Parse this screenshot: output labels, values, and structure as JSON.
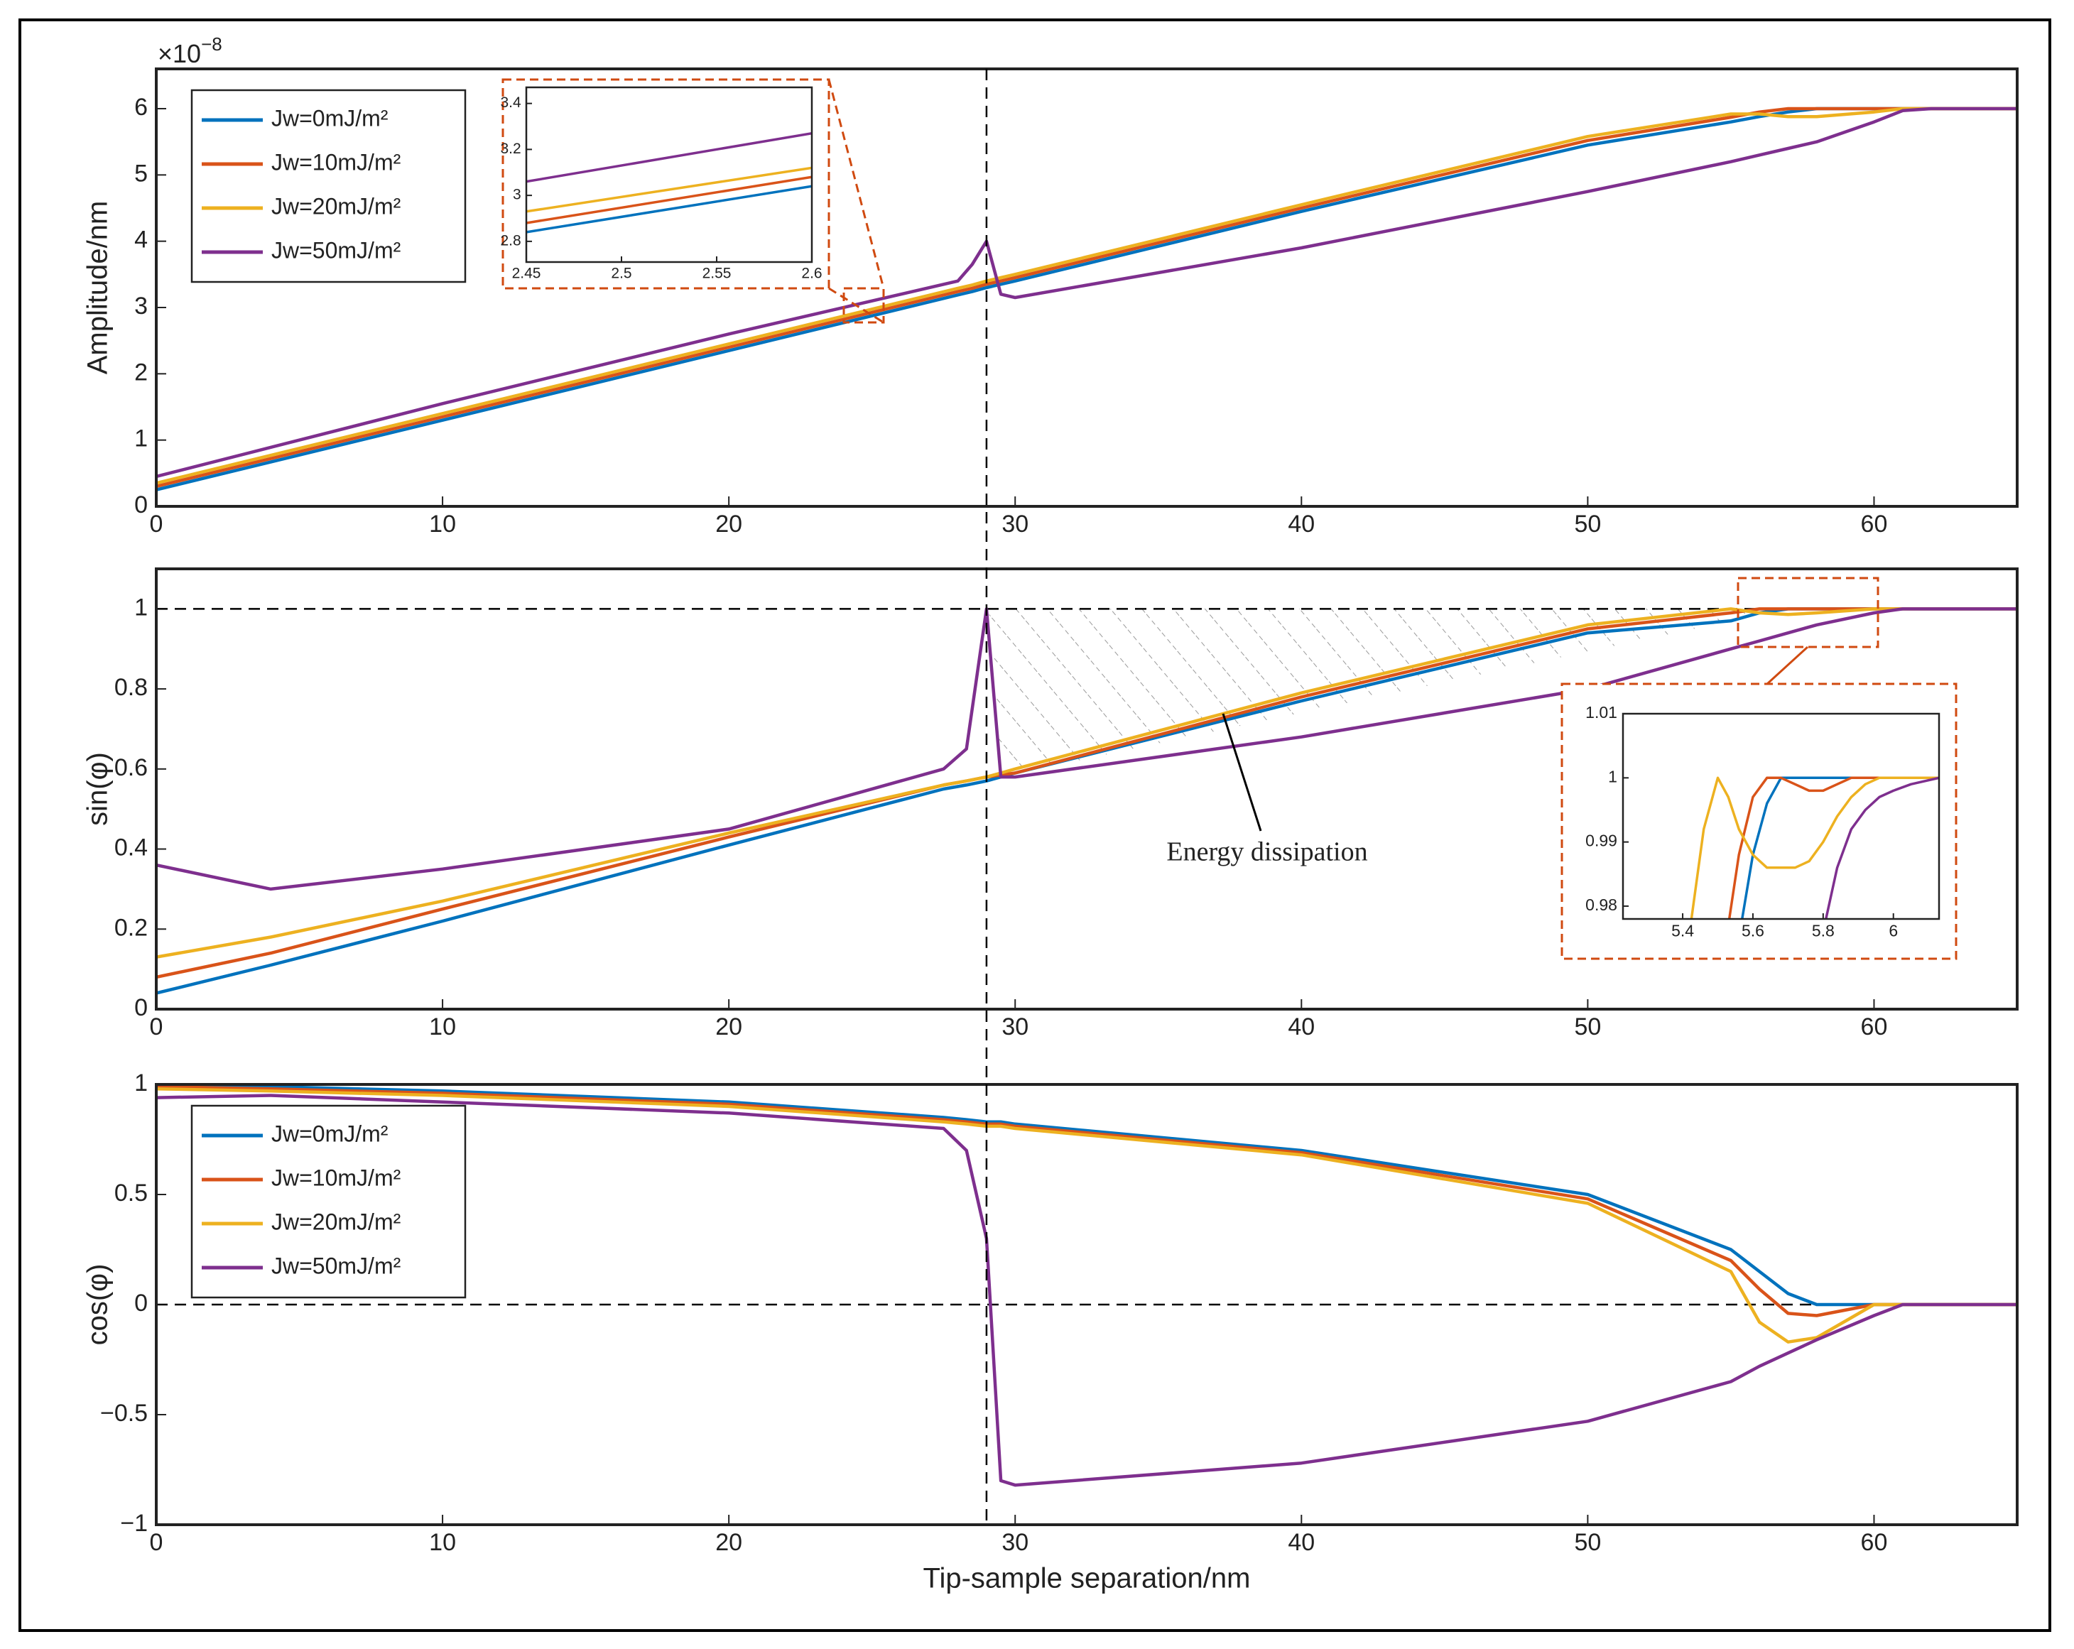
{
  "chart_data": [
    {
      "type": "line",
      "ylabel": "Amplitude/nm",
      "y_multiplier": {
        "base": "×10",
        "exponent": "−8"
      },
      "x": [
        0,
        10,
        20,
        28,
        28.5,
        29,
        29.5,
        30,
        40,
        50,
        55,
        56,
        57,
        58,
        60,
        61,
        62,
        65
      ],
      "series": [
        {
          "name": "Jw=0mJ/m²",
          "color": "#0072BD",
          "values": [
            0.25,
            1.3,
            2.35,
            3.19,
            3.24,
            3.3,
            3.35,
            3.4,
            4.45,
            5.45,
            5.8,
            5.88,
            5.95,
            6,
            6,
            6,
            6,
            6
          ]
        },
        {
          "name": "Jw=10mJ/m²",
          "color": "#D95319",
          "values": [
            0.3,
            1.35,
            2.4,
            3.24,
            3.29,
            3.35,
            3.4,
            3.45,
            4.5,
            5.52,
            5.87,
            5.95,
            6,
            6,
            6,
            6,
            6,
            6
          ]
        },
        {
          "name": "Jw=20mJ/m²",
          "color": "#EDB120",
          "values": [
            0.35,
            1.4,
            2.45,
            3.29,
            3.34,
            3.4,
            3.45,
            3.5,
            4.55,
            5.58,
            5.92,
            5.92,
            5.88,
            5.88,
            5.95,
            6,
            6,
            6
          ]
        },
        {
          "name": "Jw=50mJ/m²",
          "color": "#7E2F8E",
          "values": [
            0.45,
            1.55,
            2.6,
            3.4,
            3.65,
            4.0,
            3.2,
            3.15,
            3.9,
            4.75,
            5.2,
            5.3,
            5.4,
            5.5,
            5.8,
            5.97,
            6,
            6
          ]
        }
      ],
      "xlim": [
        0,
        65
      ],
      "ylim": [
        0,
        6.6
      ],
      "xticks": [
        0,
        10,
        20,
        30,
        40,
        50,
        60
      ],
      "yticks": [
        0,
        1,
        2,
        3,
        4,
        5,
        6
      ],
      "legend": "upper left",
      "vline": 29
    },
    {
      "type": "line",
      "ylabel": "sin(φ)",
      "annotation": "Energy dissipation",
      "x": [
        0,
        4,
        10,
        20,
        27.5,
        28.3,
        29,
        29.5,
        30,
        40,
        50,
        55,
        56,
        57,
        58,
        60,
        61,
        65
      ],
      "series": [
        {
          "color": "#0072BD",
          "values": [
            0.04,
            0.11,
            0.22,
            0.41,
            0.55,
            0.56,
            0.57,
            0.58,
            0.59,
            0.77,
            0.94,
            0.97,
            0.99,
            1,
            1,
            1,
            1,
            1
          ]
        },
        {
          "color": "#D95319",
          "values": [
            0.08,
            0.14,
            0.25,
            0.43,
            0.56,
            0.57,
            0.58,
            0.585,
            0.59,
            0.78,
            0.95,
            0.99,
            1,
            1,
            1,
            1,
            1,
            1
          ]
        },
        {
          "color": "#EDB120",
          "values": [
            0.13,
            0.18,
            0.27,
            0.44,
            0.56,
            0.57,
            0.58,
            0.59,
            0.6,
            0.79,
            0.96,
            1,
            0.99,
            0.986,
            0.99,
            1,
            1,
            1
          ]
        },
        {
          "color": "#7E2F8E",
          "values": [
            0.36,
            0.3,
            0.35,
            0.45,
            0.6,
            0.65,
            1,
            0.58,
            0.58,
            0.68,
            0.8,
            0.9,
            0.92,
            0.94,
            0.96,
            0.99,
            1,
            1
          ]
        }
      ],
      "xlim": [
        0,
        65
      ],
      "ylim": [
        0,
        1.1
      ],
      "xticks": [
        0,
        10,
        20,
        30,
        40,
        50,
        60
      ],
      "yticks": [
        0,
        0.2,
        0.4,
        0.6,
        0.8,
        1
      ],
      "hline": 1
    },
    {
      "type": "line",
      "ylabel": "cos(φ)",
      "xlabel": "Tip-sample separation/nm",
      "x": [
        0,
        4,
        10,
        20,
        27.5,
        28.3,
        29,
        29.5,
        30,
        40,
        50,
        55,
        56,
        57,
        58,
        60,
        61,
        65
      ],
      "series": [
        {
          "name": "Jw=0mJ/m²",
          "color": "#0072BD",
          "values": [
            0.99,
            0.99,
            0.97,
            0.92,
            0.85,
            0.84,
            0.83,
            0.83,
            0.82,
            0.7,
            0.5,
            0.25,
            0.15,
            0.05,
            0,
            0,
            0,
            0
          ]
        },
        {
          "name": "Jw=10mJ/m²",
          "color": "#D95319",
          "values": [
            0.99,
            0.98,
            0.96,
            0.91,
            0.84,
            0.83,
            0.82,
            0.82,
            0.81,
            0.69,
            0.48,
            0.2,
            0.07,
            -0.04,
            -0.05,
            0,
            0,
            0
          ]
        },
        {
          "name": "Jw=20mJ/m²",
          "color": "#EDB120",
          "values": [
            0.98,
            0.97,
            0.95,
            0.9,
            0.83,
            0.82,
            0.81,
            0.81,
            0.8,
            0.68,
            0.46,
            0.15,
            -0.08,
            -0.17,
            -0.15,
            0,
            0,
            0
          ]
        },
        {
          "name": "Jw=50mJ/m²",
          "color": "#7E2F8E",
          "values": [
            0.94,
            0.95,
            0.92,
            0.87,
            0.8,
            0.7,
            0.3,
            -0.8,
            -0.82,
            -0.72,
            -0.53,
            -0.35,
            -0.28,
            -0.22,
            -0.16,
            -0.05,
            0,
            0
          ]
        }
      ],
      "xlim": [
        0,
        65
      ],
      "ylim": [
        -1,
        1
      ],
      "xticks": [
        0,
        10,
        20,
        30,
        40,
        50,
        60
      ],
      "yticks": [
        {
          "value": -1,
          "label": "−1"
        },
        {
          "value": -0.5,
          "label": "−0.5"
        },
        0,
        0.5,
        1
      ],
      "legend": "upper left",
      "hline": 0
    },
    {
      "type": "line",
      "x": [
        2.45,
        2.6
      ],
      "series": [
        {
          "color": "#0072BD",
          "values": [
            2.84,
            3.04
          ]
        },
        {
          "color": "#D95319",
          "values": [
            2.88,
            3.08
          ]
        },
        {
          "color": "#EDB120",
          "values": [
            2.93,
            3.12
          ]
        },
        {
          "color": "#7E2F8E",
          "values": [
            3.06,
            3.27
          ]
        }
      ],
      "xlim": [
        2.45,
        2.6
      ],
      "ylim": [
        2.71,
        3.47
      ],
      "xticks": [
        2.45,
        2.5,
        2.55,
        2.6
      ],
      "yticks": [
        2.8,
        3,
        3.2,
        3.4
      ]
    },
    {
      "type": "line",
      "x": [
        5.42,
        5.46,
        5.5,
        5.53,
        5.56,
        5.6,
        5.64,
        5.68,
        5.72,
        5.76,
        5.8,
        5.84,
        5.88,
        5.92,
        5.96,
        6,
        6.05,
        6.13
      ],
      "series": [
        {
          "color": "#0072BD",
          "values": [
            null,
            null,
            null,
            null,
            0.975,
            0.988,
            0.996,
            1,
            1,
            1,
            1,
            1,
            1,
            1,
            1,
            1,
            1,
            1
          ]
        },
        {
          "color": "#D95319",
          "values": [
            null,
            null,
            null,
            0.977,
            0.988,
            0.997,
            1,
            1,
            0.999,
            0.998,
            0.998,
            0.999,
            1,
            1,
            1,
            1,
            1,
            1
          ]
        },
        {
          "color": "#EDB120",
          "values": [
            0.976,
            0.992,
            1,
            0.997,
            0.992,
            0.988,
            0.986,
            0.986,
            0.986,
            0.987,
            0.99,
            0.994,
            0.997,
            0.999,
            1,
            1,
            1,
            1
          ]
        },
        {
          "color": "#7E2F8E",
          "values": [
            null,
            null,
            null,
            null,
            null,
            null,
            null,
            null,
            null,
            null,
            0.976,
            0.986,
            0.992,
            0.995,
            0.997,
            0.998,
            0.999,
            1
          ]
        }
      ],
      "xlim": [
        5.23,
        6.13
      ],
      "ylim": [
        0.978,
        1.01
      ],
      "xticks": [
        5.4,
        5.6,
        5.8,
        6
      ],
      "yticks": [
        0.98,
        0.99,
        1,
        1.01
      ]
    }
  ]
}
